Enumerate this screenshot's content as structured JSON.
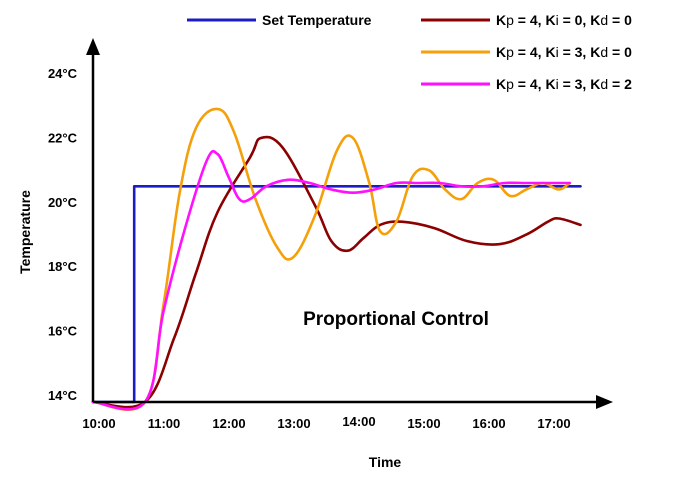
{
  "chart_data": {
    "type": "line",
    "xlabel": "Time",
    "ylabel": "Temperature",
    "annotation": "Proportional Control",
    "x_ticks": [
      "10:00",
      "11:00",
      "12:00",
      "13:00",
      "14:00",
      "15:00",
      "16:00",
      "17:00"
    ],
    "y_ticks": [
      "14°C",
      "16°C",
      "18°C",
      "20°C",
      "22°C",
      "24°C"
    ],
    "xlim": [
      "10:00",
      "17:30"
    ],
    "ylim": [
      14,
      24.5
    ],
    "grid": false,
    "legend_position": "top-right",
    "legend": [
      {
        "key": "set",
        "label": "Set Temperature",
        "color": "#1c1cc4"
      },
      {
        "key": "p",
        "label_parts": [
          "K",
          "p",
          " = 4, K",
          "i",
          " = 0, K",
          "d",
          " = 0"
        ],
        "color": "#8b0000"
      },
      {
        "key": "pi",
        "label_parts": [
          "K",
          "p",
          " = 4, K",
          "i",
          " = 3, K",
          "d",
          " = 0"
        ],
        "color": "#f5a00a"
      },
      {
        "key": "pid",
        "label_parts": [
          "K",
          "p",
          " = 4, K",
          "i",
          " = 3, K",
          "d",
          " = 2"
        ],
        "color": "#ff10ff"
      }
    ],
    "series": [
      {
        "key": "set",
        "color": "#1c1cc4",
        "curve": "step",
        "x": [
          "10:00",
          "10:38",
          "10:38",
          "17:30"
        ],
        "y": [
          14,
          14,
          20.7,
          20.7
        ]
      },
      {
        "key": "p",
        "color": "#8b0000",
        "curve": "smooth",
        "x": [
          "10:00",
          "10:48",
          "11:15",
          "11:35",
          "11:55",
          "12:25",
          "12:35",
          "12:55",
          "13:25",
          "13:40",
          "13:55",
          "14:10",
          "14:25",
          "14:45",
          "15:15",
          "15:45",
          "16:15",
          "16:40",
          "17:00",
          "17:10",
          "17:30"
        ],
        "y": [
          14,
          14,
          16,
          18,
          19.9,
          21.6,
          22.2,
          21.9,
          20.1,
          19.0,
          18.7,
          19.1,
          19.5,
          19.6,
          19.4,
          19.0,
          18.9,
          19.2,
          19.6,
          19.7,
          19.5
        ]
      },
      {
        "key": "pi",
        "color": "#f5a00a",
        "curve": "smooth",
        "x": [
          "10:00",
          "10:48",
          "11:05",
          "11:20",
          "11:35",
          "11:55",
          "12:10",
          "12:30",
          "12:50",
          "13:05",
          "13:25",
          "13:45",
          "14:00",
          "14:15",
          "14:25",
          "14:40",
          "14:55",
          "15:10",
          "15:25",
          "15:40",
          "15:55",
          "16:10",
          "16:25",
          "16:40",
          "16:55",
          "17:10",
          "17:20"
        ],
        "y": [
          14,
          14,
          17,
          20.5,
          22.5,
          23.1,
          22.4,
          20.3,
          18.8,
          18.5,
          19.8,
          21.8,
          22.2,
          20.8,
          19.3,
          19.6,
          21.0,
          21.2,
          20.6,
          20.3,
          20.8,
          20.9,
          20.4,
          20.6,
          20.8,
          20.6,
          20.8
        ]
      },
      {
        "key": "pid",
        "color": "#ff10ff",
        "curve": "smooth",
        "x": [
          "10:00",
          "10:48",
          "11:05",
          "11:25",
          "11:45",
          "11:55",
          "12:05",
          "12:15",
          "12:25",
          "12:40",
          "13:00",
          "13:20",
          "13:40",
          "14:00",
          "14:20",
          "14:40",
          "15:00",
          "15:20",
          "15:40",
          "16:00",
          "16:20",
          "16:40",
          "17:00",
          "17:20"
        ],
        "y": [
          14,
          14,
          16.8,
          19.4,
          21.5,
          21.7,
          21.0,
          20.3,
          20.3,
          20.7,
          20.9,
          20.8,
          20.6,
          20.5,
          20.6,
          20.8,
          20.8,
          20.8,
          20.7,
          20.7,
          20.8,
          20.8,
          20.8,
          20.8
        ]
      }
    ]
  }
}
